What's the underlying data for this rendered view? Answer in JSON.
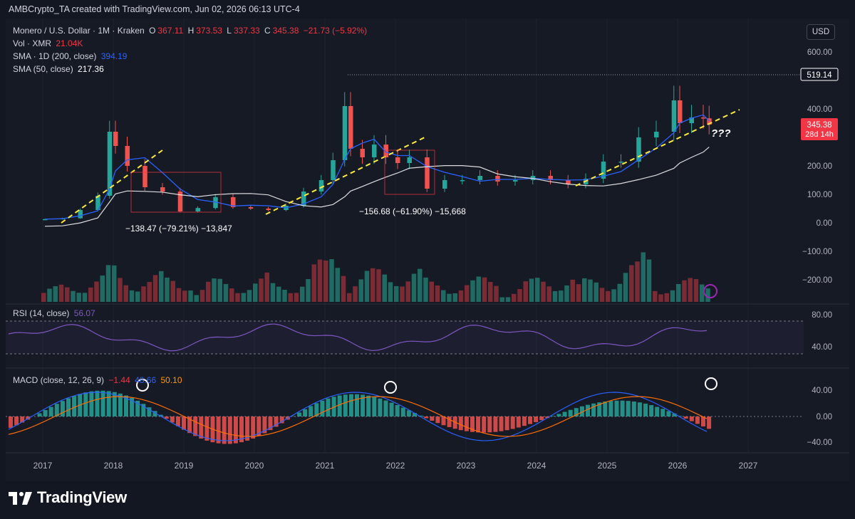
{
  "header": {
    "credit": "AMBCrypto_TA created with TradingView.com, Jun 02, 2026 06:13 UTC-4"
  },
  "legend": {
    "symbol": "Monero / U.S. Dollar · 1M · Kraken",
    "o_label": "O",
    "o_value": "367.11",
    "h_label": "H",
    "h_value": "373.53",
    "l_label": "L",
    "l_value": "337.33",
    "c_label": "C",
    "c_value": "345.38",
    "change": "−21.73 (−5.92%)",
    "vol_label": "Vol · XMR",
    "vol_value": "21.04K",
    "sma200_label": "SMA · 1D (200, close)",
    "sma200_value": "394.19",
    "sma50_label": "SMA (50, close)",
    "sma50_value": "217.36"
  },
  "currency_button": "USD",
  "price_scale": {
    "ticks": [
      "600.00",
      "400.00",
      "300.00",
      "200.00",
      "100.00",
      "0.00",
      "−100.00",
      "−200.00"
    ],
    "marker_line": "519.14",
    "last_price": "345.38",
    "countdown": "28d 14h"
  },
  "rsi": {
    "label": "RSI (14, close)",
    "value": "56.07",
    "ticks": [
      "80.00",
      "40.00"
    ]
  },
  "macd": {
    "label": "MACD (close, 12, 26, 9)",
    "macd_value": "−1.44",
    "signal_value": "48.66",
    "hist_value": "50.10",
    "ticks": [
      "40.00",
      "0.00",
      "−40.00"
    ]
  },
  "annotations": {
    "drop_2018": "−138.47 (−79.21%) −13,847",
    "drop_2022": "−156.68 (−61.90%) −15,668",
    "question": "???"
  },
  "x_axis": [
    "2017",
    "2018",
    "2019",
    "2020",
    "2021",
    "2022",
    "2023",
    "2024",
    "2025",
    "2026",
    "2027"
  ],
  "brand": "TradingView",
  "colors": {
    "up": "#26a69a",
    "down": "#ef5350",
    "sma200": "#ffffff",
    "sma50": "#2962ff",
    "trend": "#ffeb3b",
    "rsi": "#7e57c2",
    "macd": "#2962ff",
    "signal": "#ff6d00"
  },
  "chart_data": {
    "type": "candlestick",
    "title": "Monero / U.S. Dollar · 1M · Kraken",
    "ylim": [
      -240,
      620
    ],
    "series": [
      {
        "name": "XMR/USD monthly close",
        "x": [
          "2017-01",
          "2017-04",
          "2017-07",
          "2017-10",
          "2017-12",
          "2018-01",
          "2018-03",
          "2018-06",
          "2018-09",
          "2018-12",
          "2019-03",
          "2019-06",
          "2019-09",
          "2019-12",
          "2020-03",
          "2020-06",
          "2020-09",
          "2020-12",
          "2021-02",
          "2021-04",
          "2021-05",
          "2021-07",
          "2021-09",
          "2021-11",
          "2022-01",
          "2022-03",
          "2022-06",
          "2022-09",
          "2022-12",
          "2023-03",
          "2023-06",
          "2023-09",
          "2023-12",
          "2024-03",
          "2024-06",
          "2024-09",
          "2024-12",
          "2025-03",
          "2025-06",
          "2025-09",
          "2025-12",
          "2026-01",
          "2026-03",
          "2026-05",
          "2026-06"
        ],
        "values": [
          13,
          16,
          45,
          95,
          320,
          270,
          200,
          125,
          110,
          40,
          52,
          90,
          55,
          50,
          45,
          60,
          110,
          150,
          220,
          410,
          260,
          230,
          275,
          230,
          210,
          230,
          120,
          150,
          150,
          165,
          145,
          150,
          165,
          150,
          135,
          155,
          215,
          215,
          300,
          320,
          430,
          350,
          370,
          367,
          345
        ]
      },
      {
        "name": "Volume XMR",
        "values": [
          21.04
        ]
      }
    ],
    "annotations": [
      {
        "text": "−138.47 (−79.21%) −13,847",
        "from": "2018-01",
        "to": "2019-01"
      },
      {
        "text": "−156.68 (−61.90%) −15,668",
        "from": "2021-11",
        "to": "2022-06"
      }
    ],
    "rsi": {
      "ticks": [
        80,
        40
      ],
      "last": 56.07
    },
    "macd": {
      "ticks": [
        40,
        0,
        -40
      ],
      "macd": -1.44,
      "signal": 48.66,
      "hist": 50.1
    }
  }
}
